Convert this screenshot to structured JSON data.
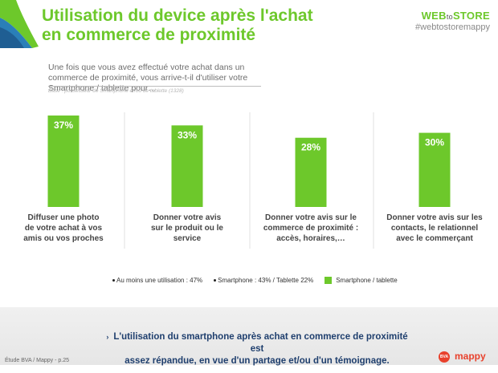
{
  "header": {
    "title_line1": "Utilisation du device après l'achat",
    "title_line2": "en commerce de proximité",
    "brand_logo": "WEB",
    "brand_logo_mid": "to",
    "brand_logo_end": "STORE",
    "brand_hashtag": "#webtostoremappy"
  },
  "question": {
    "text": "Une fois que vous avez effectué votre achat dans un commerce de proximité, vous arrive-t-il d'utiliser votre Smartphone / tablette pour…",
    "base": "Base : possesseur de Smartphone et/ou de tablette (1328)"
  },
  "chart_data": {
    "type": "bar",
    "categories": [
      "Diffuser une photo de votre achat à vos amis ou vos proches",
      "Donner votre avis sur le produit ou le service",
      "Donner votre avis sur le commerce de proximité : accès, horaires,…",
      "Donner votre avis sur les contacts, le relationnel avec le commerçant"
    ],
    "category_lines": [
      [
        "Diffuser une photo",
        "de votre achat à vos",
        "amis ou vos proches"
      ],
      [
        "Donner votre avis",
        "sur le produit ou le",
        "service"
      ],
      [
        "Donner votre avis sur le",
        "commerce de proximité :",
        "accès, horaires,…"
      ],
      [
        "Donner votre avis sur les",
        "contacts, le relationnel",
        "avec le commerçant"
      ]
    ],
    "series": [
      {
        "name": "Smartphone / tablette",
        "values": [
          37,
          33,
          28,
          30
        ]
      }
    ],
    "data_labels": [
      "37%",
      "33%",
      "28%",
      "30%"
    ],
    "ylim": [
      0,
      37
    ],
    "grid": false,
    "bar_color": "#6dc82b",
    "legend_position": "bottom"
  },
  "legend": {
    "item1": "Au moins une utilisation : 47%",
    "item2": "Smartphone : 43% / Tablette 22%",
    "item3": "Smartphone / tablette"
  },
  "conclusion": {
    "line1": "L'utilisation du smartphone après achat en commerce de proximité est",
    "line2": "assez répandue, en vue d'un partage et/ou d'un témoignage."
  },
  "footer": {
    "source": "Étude BVA / Mappy - p.25",
    "bva_logo": "BVA",
    "mappy_logo": "mappy"
  }
}
